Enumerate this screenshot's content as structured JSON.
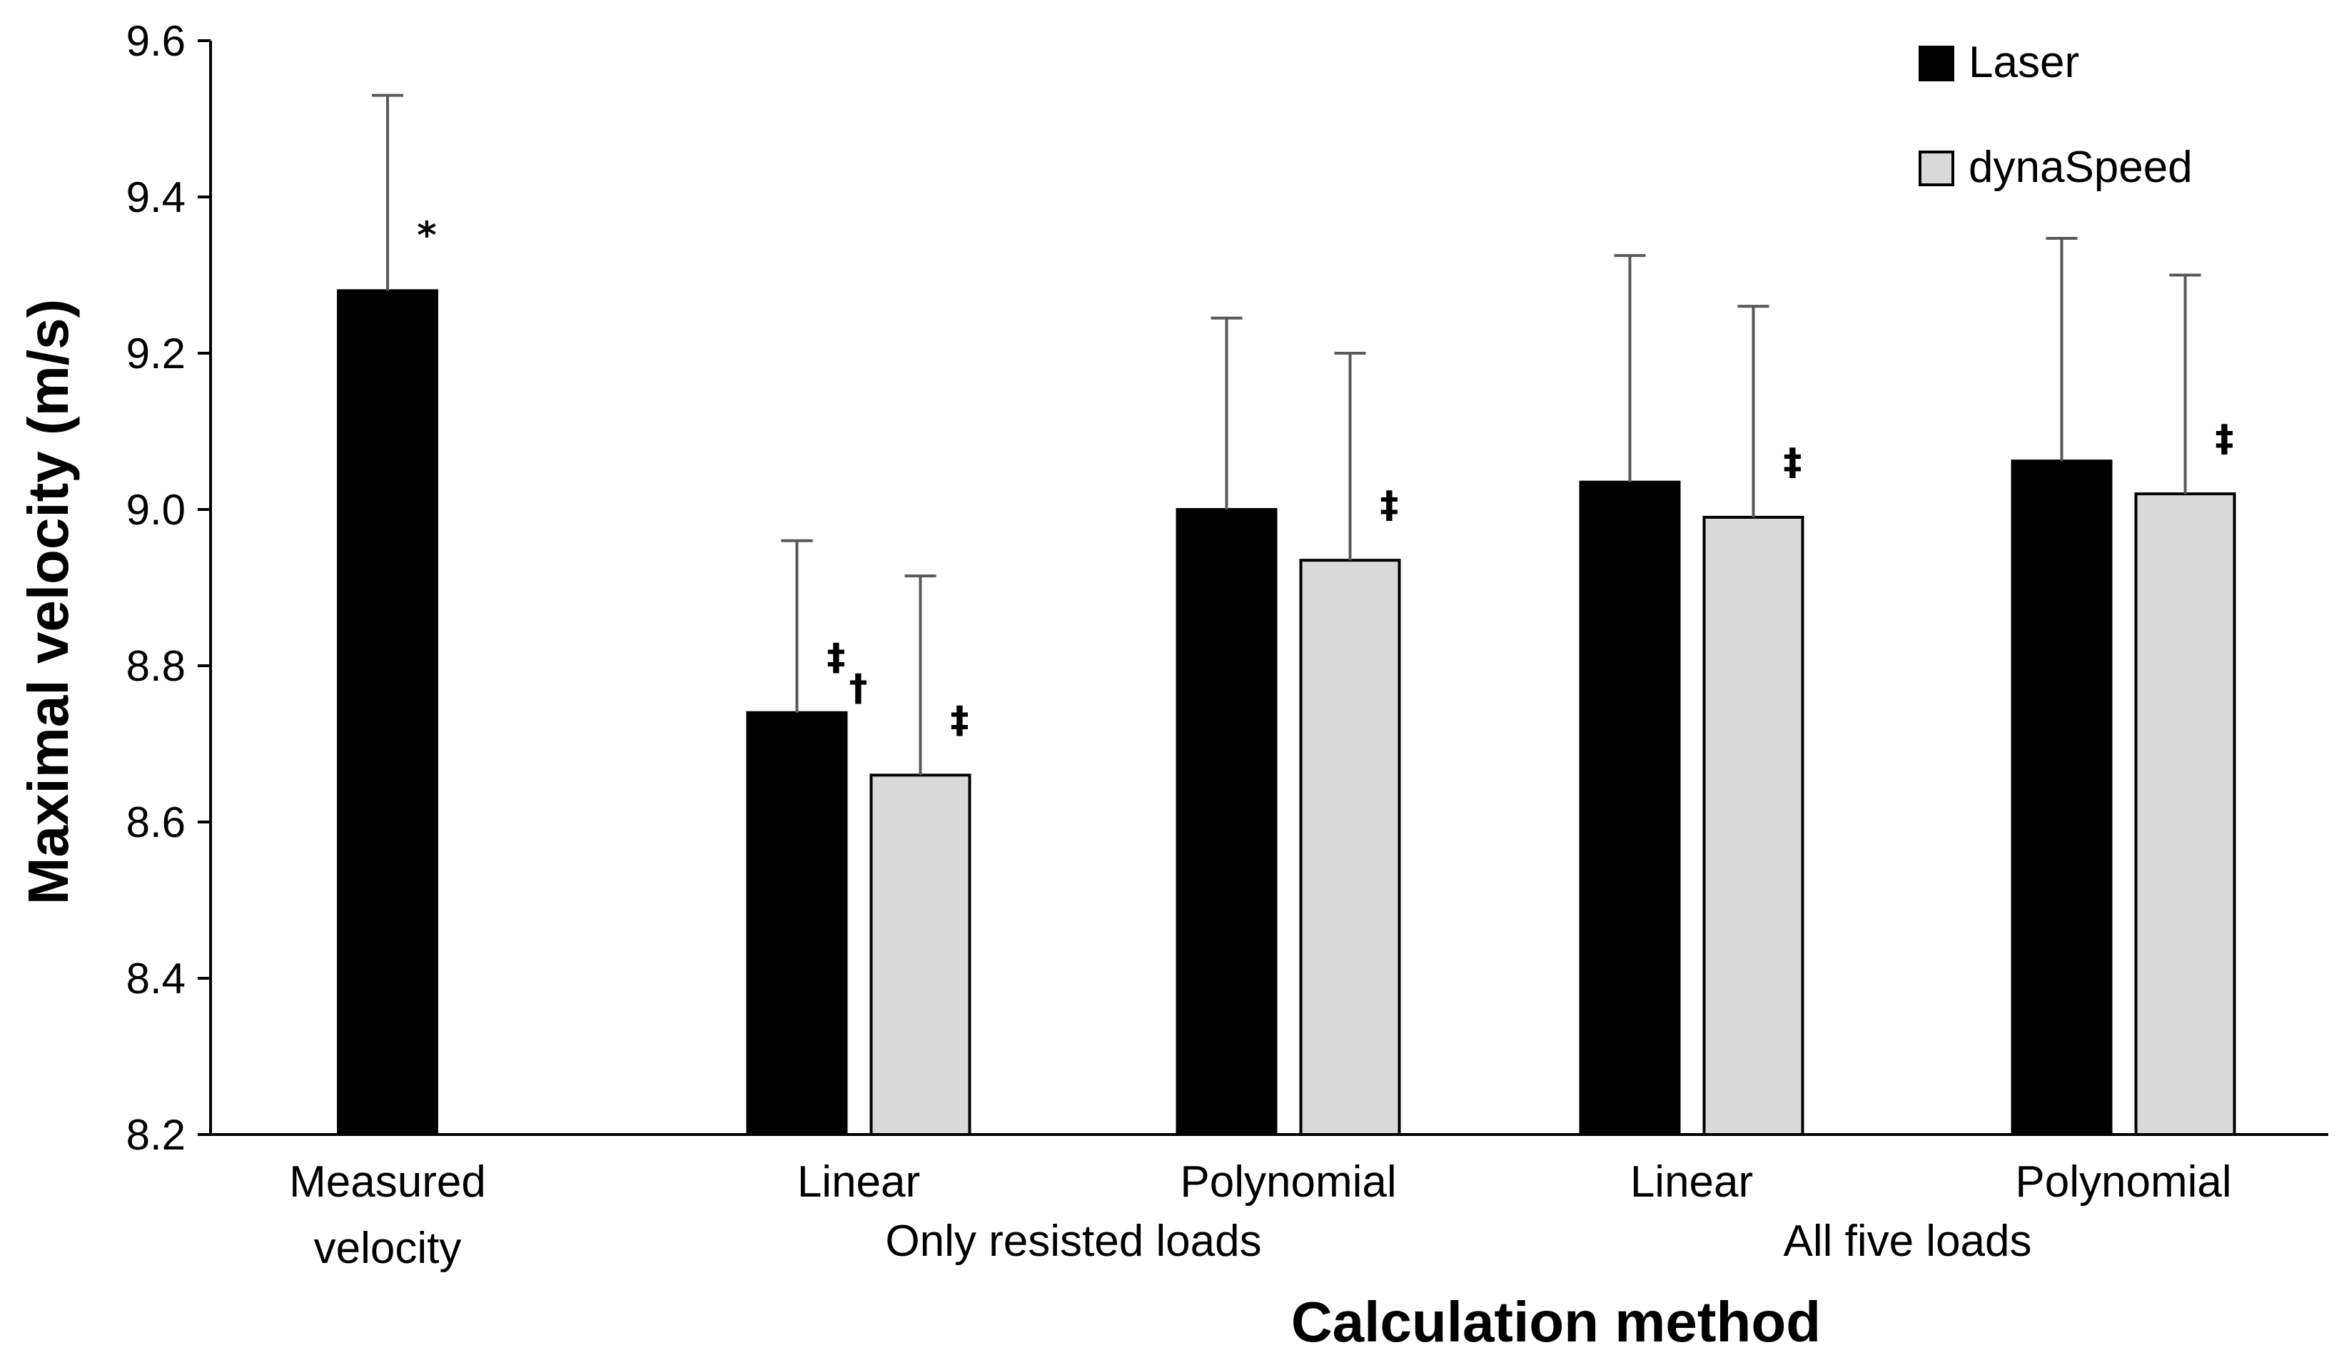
{
  "chart_data": {
    "type": "bar",
    "title": "",
    "xlabel": "Calculation method",
    "ylabel": "Maximal velocity (m/s)",
    "ylim": [
      8.2,
      9.6
    ],
    "yticks": [
      "8.2",
      "8.4",
      "8.6",
      "8.8",
      "9.0",
      "9.2",
      "9.4",
      "9.6"
    ],
    "grid": false,
    "legend_position": "top-right",
    "series": [
      {
        "name": "Laser",
        "color": "#000000"
      },
      {
        "name": "dynaSpeed",
        "color": "#d9d9d9"
      }
    ],
    "categories": [
      {
        "line1": "Measured",
        "line2": "velocity"
      },
      {
        "line1": "Linear"
      },
      {
        "line1": "Polynomial"
      },
      {
        "line1": "Linear"
      },
      {
        "line1": "Polynomial"
      }
    ],
    "groups": [
      {
        "label": "Only resisted loads",
        "categories": [
          1,
          2
        ]
      },
      {
        "label": "All five loads",
        "categories": [
          3,
          4
        ]
      }
    ],
    "bars": [
      {
        "category": 0,
        "series": "Laser",
        "value": 9.28,
        "error": 0.25,
        "annotation": "*"
      },
      {
        "category": 1,
        "series": "Laser",
        "value": 8.74,
        "error": 0.22,
        "annotation": "‡"
      },
      {
        "category": 1,
        "series": "dynaSpeed",
        "value": 8.66,
        "error": 0.255,
        "annotation": "‡",
        "annotation_left": "†"
      },
      {
        "category": 2,
        "series": "Laser",
        "value": 9.0,
        "error": 0.245,
        "annotation": ""
      },
      {
        "category": 2,
        "series": "dynaSpeed",
        "value": 8.935,
        "error": 0.265,
        "annotation": "‡"
      },
      {
        "category": 3,
        "series": "Laser",
        "value": 9.035,
        "error": 0.29,
        "annotation": ""
      },
      {
        "category": 3,
        "series": "dynaSpeed",
        "value": 8.99,
        "error": 0.27,
        "annotation": "‡"
      },
      {
        "category": 4,
        "series": "Laser",
        "value": 9.062,
        "error": 0.285,
        "annotation": ""
      },
      {
        "category": 4,
        "series": "dynaSpeed",
        "value": 9.02,
        "error": 0.28,
        "annotation": "‡"
      }
    ]
  }
}
